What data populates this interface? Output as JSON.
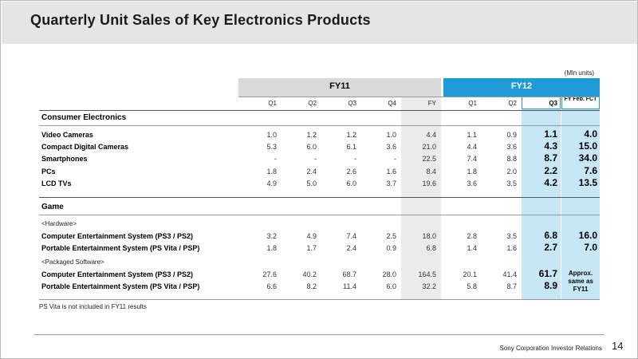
{
  "title": "Quarterly Unit Sales of Key Electronics Products",
  "units": "(Mln units)",
  "groups": {
    "fy11": "FY11",
    "fy12": "FY12"
  },
  "columns": [
    "Q1",
    "Q2",
    "Q3",
    "Q4",
    "FY",
    "Q1",
    "Q2",
    "Q3"
  ],
  "feb_fct_header": "FY Feb. FCT",
  "sections": [
    {
      "name": "Consumer Electronics",
      "rows": [
        {
          "label": "Video Cameras",
          "values": [
            "1.0",
            "1.2",
            "1.2",
            "1.0",
            "4.4",
            "1.1",
            "0.9",
            "1.1",
            "4.0"
          ]
        },
        {
          "label": "Compact Digital Cameras",
          "values": [
            "5.3",
            "6.0",
            "6.1",
            "3.6",
            "21.0",
            "4.4",
            "3.6",
            "4.3",
            "15.0"
          ]
        },
        {
          "label": "Smartphones",
          "values": [
            "-",
            "-",
            "-",
            "-",
            "22.5",
            "7.4",
            "8.8",
            "8.7",
            "34.0"
          ]
        },
        {
          "label": "PCs",
          "values": [
            "1.8",
            "2.4",
            "2.6",
            "1.6",
            "8.4",
            "1.8",
            "2.0",
            "2.2",
            "7.6"
          ]
        },
        {
          "label": "LCD TVs",
          "values": [
            "4.9",
            "5.0",
            "6.0",
            "3.7",
            "19.6",
            "3.6",
            "3.5",
            "4.2",
            "13.5"
          ]
        }
      ]
    },
    {
      "name": "Game",
      "subsections": [
        {
          "name": "<Hardware>",
          "rows": [
            {
              "label": "Computer Entertainment System (PS3 / PS2)",
              "values": [
                "3.2",
                "4.9",
                "7.4",
                "2.5",
                "18.0",
                "2.8",
                "3.5",
                "6.8",
                "16.0"
              ]
            },
            {
              "label": "Portable Entertainment System (PS Vita / PSP)",
              "values": [
                "1.8",
                "1.7",
                "2.4",
                "0.9",
                "6.8",
                "1.4",
                "1.6",
                "2.7",
                "7.0"
              ]
            }
          ]
        },
        {
          "name": "<Packaged Software>",
          "rows": [
            {
              "label": "Computer Entertainment System (PS3 / PS2)",
              "values": [
                "27.6",
                "40.2",
                "68.7",
                "28.0",
                "164.5",
                "20.1",
                "41.4",
                "61.7"
              ]
            },
            {
              "label": "Portable Entertainment System (PS Vita / PSP)",
              "values": [
                "6.6",
                "8.2",
                "11.4",
                "6.0",
                "32.2",
                "5.8",
                "8.7",
                "8.9"
              ]
            }
          ],
          "feb_fct_note": "Approx. same as FY11"
        }
      ]
    }
  ],
  "footnote": "PS Vita is not included in FY11 results",
  "footer": {
    "org": "Sony Corporation Investor Relations",
    "page": "14"
  }
}
